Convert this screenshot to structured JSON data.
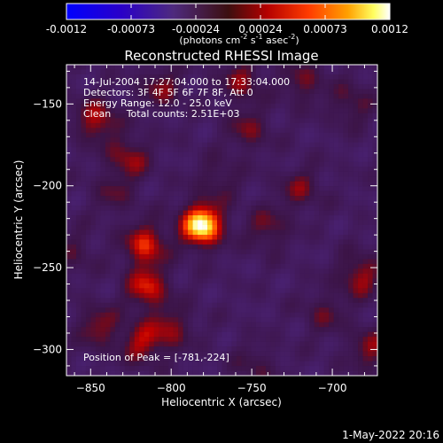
{
  "chart_data": {
    "type": "heatmap",
    "title": "Reconstructed RHESSI Image",
    "xlabel": "Heliocentric X (arcsec)",
    "ylabel": "Heliocentric Y (arcsec)",
    "xlim": [
      -865,
      -672
    ],
    "ylim": [
      -316,
      -126
    ],
    "xticks": [
      -850,
      -800,
      -750,
      -700
    ],
    "yticks": [
      -300,
      -250,
      -200,
      -150
    ],
    "colorbar": {
      "min": -0.0012,
      "max": 0.0012,
      "ticks": [
        "-0.0012",
        "-0.00073",
        "-0.00024",
        "0.00024",
        "0.00073",
        "0.0012"
      ],
      "label_main": "(photons cm",
      "sup1": "-2",
      "label_s": " s",
      "sup2": "-1",
      "label_asec": " asec",
      "sup3": "-2",
      "label_end": ")"
    },
    "info_lines": [
      "14-Jul-2004 17:27:04.000 to 17:33:04.000",
      "Detectors: 3F 4F 5F 6F 7F 8F, Att 0",
      "Energy Range: 12.0 - 25.0 keV",
      "Clean     Total counts: 2.51E+03"
    ],
    "peak_label": "Position of Peak = [-781,-224]",
    "peak": [
      -781,
      -224
    ],
    "sources": [
      {
        "x": -781,
        "y": -224,
        "amp": 1.0
      },
      {
        "x": -816,
        "y": -236,
        "amp": 0.55
      },
      {
        "x": -846,
        "y": -160,
        "amp": 0.45
      },
      {
        "x": -826,
        "y": -183,
        "amp": 0.38
      },
      {
        "x": -815,
        "y": -262,
        "amp": 0.52
      },
      {
        "x": -800,
        "y": -287,
        "amp": 0.35
      },
      {
        "x": -818,
        "y": -296,
        "amp": 0.42
      },
      {
        "x": -845,
        "y": -286,
        "amp": 0.35
      },
      {
        "x": -806,
        "y": -140,
        "amp": 0.32
      },
      {
        "x": -756,
        "y": -136,
        "amp": 0.35
      },
      {
        "x": -752,
        "y": -166,
        "amp": 0.3
      },
      {
        "x": -718,
        "y": -137,
        "amp": 0.3
      },
      {
        "x": -720,
        "y": -202,
        "amp": 0.3
      },
      {
        "x": -740,
        "y": -226,
        "amp": 0.3
      },
      {
        "x": -683,
        "y": -255,
        "amp": 0.42
      },
      {
        "x": -676,
        "y": -300,
        "amp": 0.35
      },
      {
        "x": -705,
        "y": -278,
        "amp": 0.25
      },
      {
        "x": -688,
        "y": -150,
        "amp": 0.28
      },
      {
        "x": -770,
        "y": -196,
        "amp": 0.22
      },
      {
        "x": -748,
        "y": -310,
        "amp": 0.22
      },
      {
        "x": -836,
        "y": -205,
        "amp": 0.22
      },
      {
        "x": -860,
        "y": -240,
        "amp": 0.2
      }
    ]
  },
  "footer": {
    "date": "1-May-2022 20:16"
  }
}
